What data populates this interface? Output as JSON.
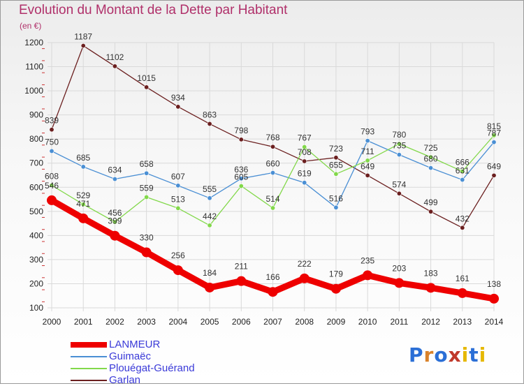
{
  "title": "Evolution du Montant de la Dette par Habitant",
  "unit_label": "(en €)",
  "logo_text": "Proxiti",
  "colors": {
    "title": "#b0306a",
    "legend_text": "#3a3ad8",
    "grid": "#d9d9d9",
    "axis_text": "#222222",
    "value_text": "#333333"
  },
  "chart_data": {
    "type": "line",
    "x": [
      "2000",
      "2001",
      "2002",
      "2003",
      "2004",
      "2005",
      "2006",
      "2007",
      "2008",
      "2009",
      "2010",
      "2011",
      "2012",
      "2013",
      "2014"
    ],
    "ylim": [
      100,
      1200
    ],
    "yticks": [
      100,
      200,
      300,
      400,
      500,
      600,
      700,
      800,
      900,
      1000,
      1100,
      1200
    ],
    "grid": true,
    "legend_position": "bottom-left",
    "series": [
      {
        "name": "Garlan",
        "color": "#6b1f1f",
        "emphasis": false,
        "values": [
          839,
          1187,
          1102,
          1015,
          934,
          863,
          798,
          768,
          708,
          723,
          649,
          574,
          499,
          432,
          649
        ]
      },
      {
        "name": "Guimaëc",
        "color": "#4a8fd4",
        "emphasis": false,
        "values": [
          750,
          685,
          634,
          658,
          607,
          555,
          636,
          660,
          619,
          516,
          793,
          735,
          680,
          631,
          787
        ]
      },
      {
        "name": "Plouégat-Guérand",
        "color": "#82d84a",
        "emphasis": false,
        "values": [
          608,
          529,
          456,
          559,
          513,
          442,
          605,
          514,
          767,
          655,
          711,
          780,
          725,
          666,
          815
        ]
      },
      {
        "name": "LANMEUR",
        "color": "#ee0000",
        "emphasis": true,
        "values": [
          546,
          471,
          399,
          330,
          256,
          184,
          211,
          166,
          222,
          179,
          235,
          203,
          183,
          161,
          138
        ]
      }
    ],
    "legend_order": [
      "LANMEUR",
      "Guimaëc",
      "Plouégat-Guérand",
      "Garlan"
    ]
  }
}
